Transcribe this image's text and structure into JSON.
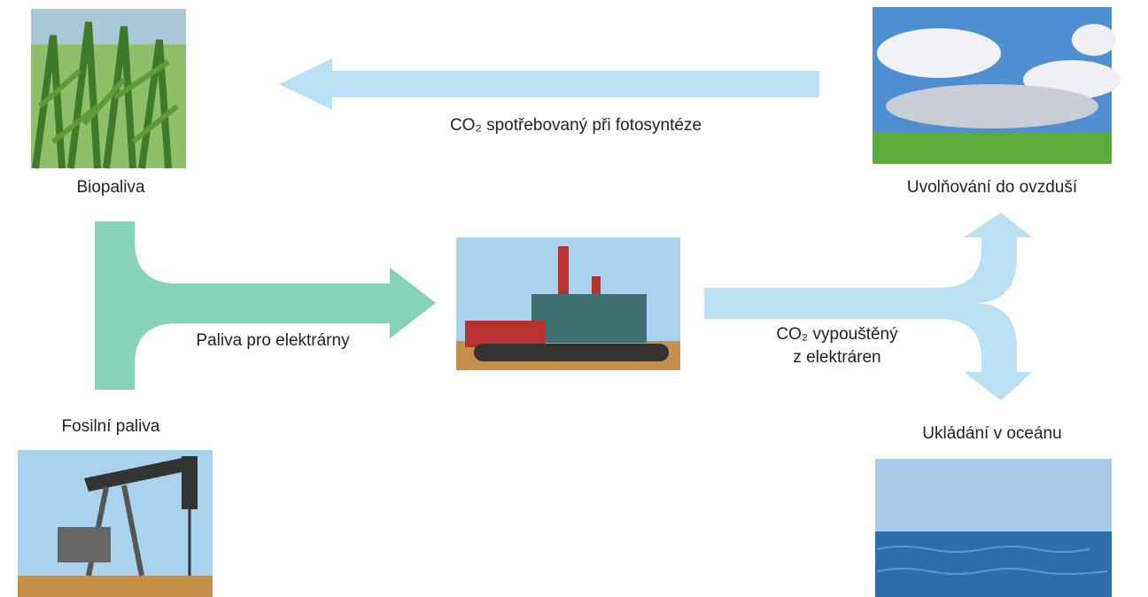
{
  "nodes": [
    {
      "label": "Biopaliva"
    },
    {
      "label": "Uvolňování do ovzduší"
    },
    {
      "label": "Fosilní paliva"
    },
    {
      "label": "Ukládání v oceánu"
    }
  ],
  "arrows": [
    {
      "label": "CO₂ spotřebovaný při fotosyntéze"
    },
    {
      "label": "Paliva pro elektrárny"
    },
    {
      "lines": [
        "CO₂ vypouštěný",
        "z elektráren"
      ]
    }
  ]
}
